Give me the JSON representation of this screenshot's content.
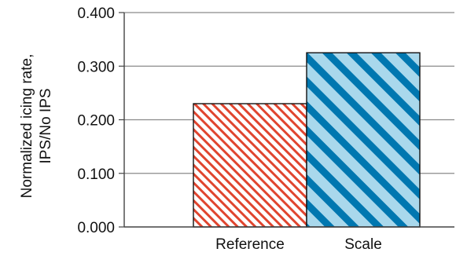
{
  "chart_data": {
    "type": "bar",
    "title": "",
    "xlabel": "",
    "ylabel": [
      "Normalized icing rate,",
      "IPS/No IPS"
    ],
    "categories": [
      "Reference",
      "Scale"
    ],
    "values": [
      0.23,
      0.325
    ],
    "ylim": [
      0,
      0.4
    ],
    "yticks": [
      0,
      0.1,
      0.2,
      0.3,
      0.4
    ],
    "ytick_labels": [
      "0.000",
      "0.100",
      "0.200",
      "0.300",
      "0.400"
    ],
    "grid": "horizontal",
    "legend": "none",
    "bar_styles": [
      {
        "fill": "#ffffff",
        "hatch": "#e0452f",
        "hatch_style": "fine-diagonal"
      },
      {
        "fill": "#a9d8ec",
        "hatch": "#0077b0",
        "hatch_style": "wide-diagonal"
      }
    ]
  }
}
